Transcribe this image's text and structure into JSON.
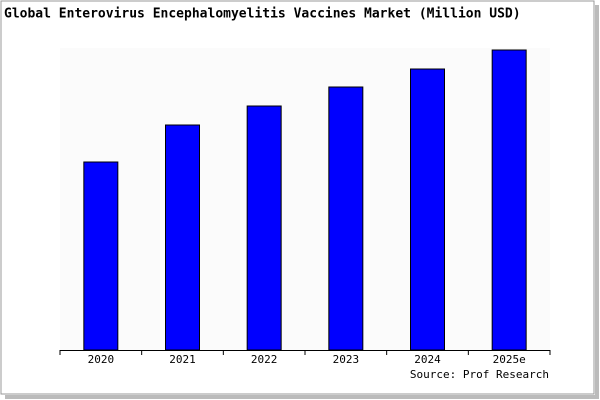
{
  "chart_data": {
    "type": "bar",
    "title": "Global Enterovirus Encephalomyelitis Vaccines Market (Million USD)",
    "source": "Source: Prof Research",
    "categories": [
      "2020",
      "2021",
      "2022",
      "2023",
      "2024",
      "2025e"
    ],
    "values": [
      188,
      225,
      244,
      263,
      281,
      300
    ],
    "color": "#0000ff",
    "ylim": [
      0,
      300
    ]
  }
}
